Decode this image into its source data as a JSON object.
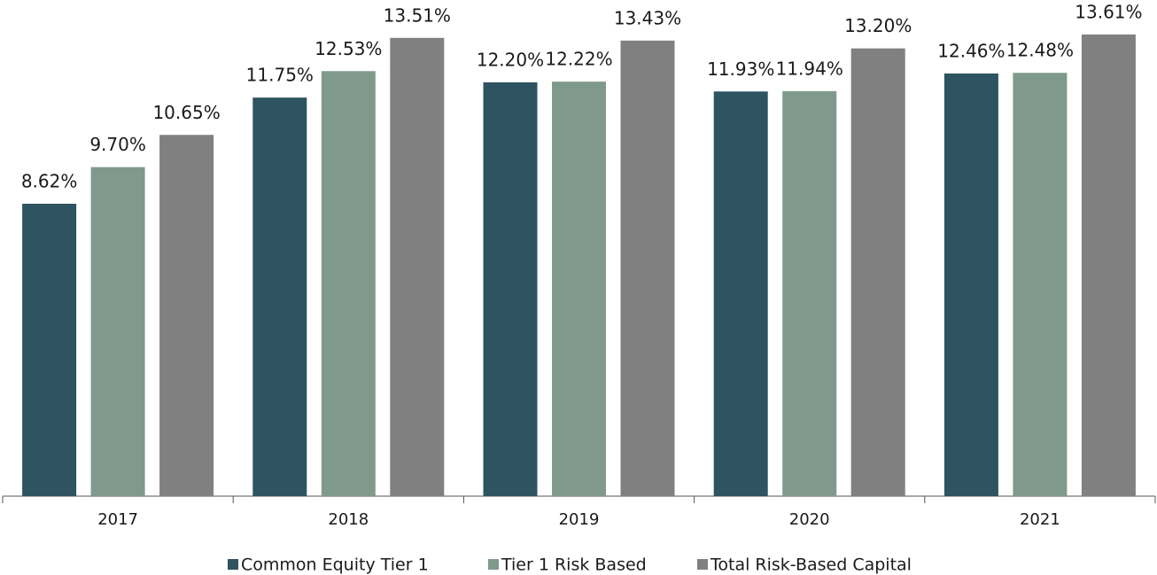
{
  "chart_data": {
    "type": "bar",
    "categories": [
      "2017",
      "2018",
      "2019",
      "2020",
      "2021"
    ],
    "series": [
      {
        "name": "Common Equity Tier 1",
        "color": "#2e5361",
        "values": [
          8.62,
          11.75,
          12.2,
          11.93,
          12.46
        ],
        "value_labels": [
          "8.62%",
          "11.75%",
          "12.20%",
          "11.93%",
          "12.46%"
        ]
      },
      {
        "name": "Tier 1 Risk Based",
        "color": "#7f9a8c",
        "values": [
          9.7,
          12.53,
          12.22,
          11.94,
          12.48
        ],
        "value_labels": [
          "9.70%",
          "12.53%",
          "12.22%",
          "11.94%",
          "12.48%"
        ]
      },
      {
        "name": "Total Risk-Based Capital",
        "color": "#808080",
        "values": [
          10.65,
          13.51,
          13.43,
          13.2,
          13.61
        ],
        "value_labels": [
          "10.65%",
          "13.51%",
          "13.43%",
          "13.20%",
          "13.61%"
        ]
      }
    ],
    "ylim": [
      0,
      14
    ]
  }
}
